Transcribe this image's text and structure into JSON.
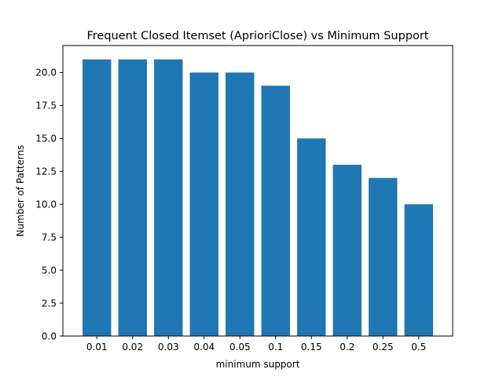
{
  "chart_data": {
    "type": "bar",
    "title": "Frequent Closed Itemset (AprioriClose) vs Minimum Support",
    "xlabel": "minimum support",
    "ylabel": "Number of Patterns",
    "categories": [
      "0.01",
      "0.02",
      "0.03",
      "0.04",
      "0.05",
      "0.1",
      "0.15",
      "0.2",
      "0.25",
      "0.5"
    ],
    "values": [
      21,
      21,
      21,
      20,
      20,
      19,
      15,
      13,
      12,
      10
    ],
    "ylim": [
      0,
      22.05
    ],
    "yticks": [
      "0.0",
      "2.5",
      "5.0",
      "7.5",
      "10.0",
      "12.5",
      "15.0",
      "17.5",
      "20.0"
    ],
    "grid": false,
    "legend": "none",
    "colors": {
      "bar": "#1f77b4",
      "axis": "#000000",
      "background": "#ffffff"
    }
  }
}
